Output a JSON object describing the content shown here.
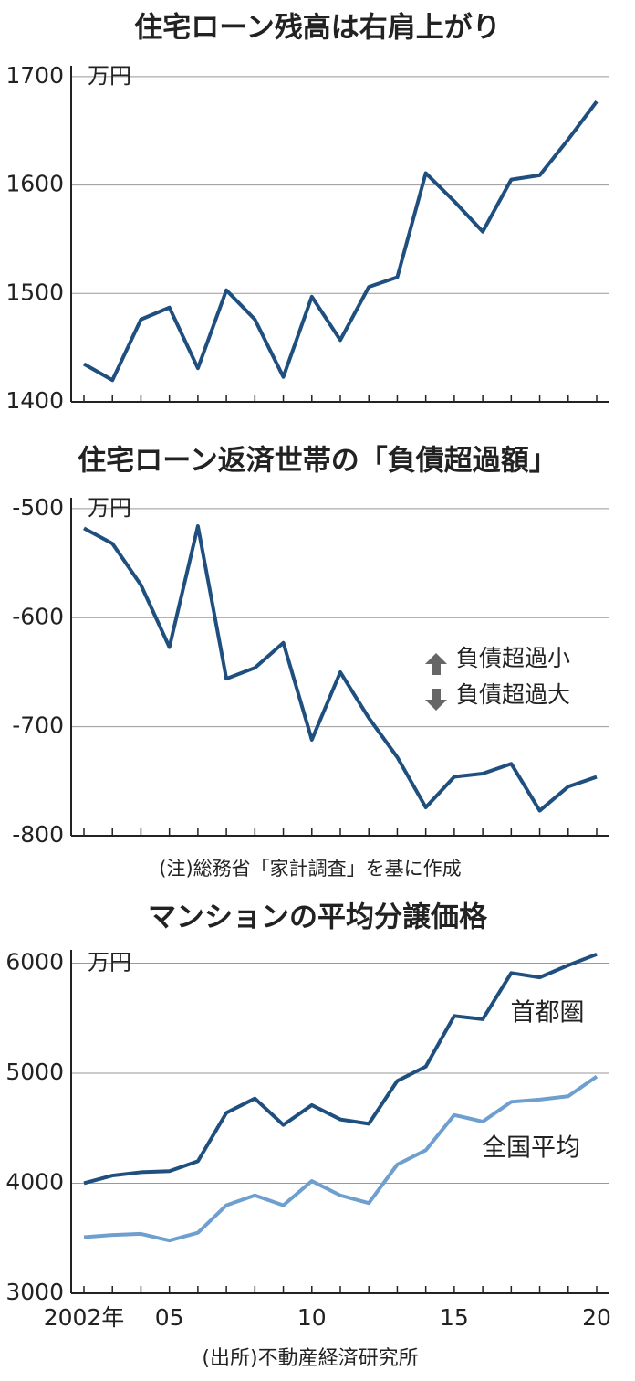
{
  "chart_data": [
    {
      "type": "line",
      "title": "住宅ローン残高は右肩上がり",
      "unit": "万円",
      "x": [
        2002,
        2003,
        2004,
        2005,
        2006,
        2007,
        2008,
        2009,
        2010,
        2011,
        2012,
        2013,
        2014,
        2015,
        2016,
        2017,
        2018,
        2019,
        2020
      ],
      "series": [
        {
          "color": "#1f4f7e",
          "values": [
            1435,
            1420,
            1476,
            1487,
            1431,
            1503,
            1476,
            1423,
            1497,
            1457,
            1506,
            1515,
            1611,
            1585,
            1557,
            1605,
            1609,
            1642,
            1677
          ]
        }
      ],
      "xlim": [
        2001.5,
        2020.5
      ],
      "ylim": [
        1400,
        1710
      ],
      "yticks": [
        1400,
        1500,
        1600,
        1700
      ],
      "grid": true
    },
    {
      "type": "line",
      "title": "住宅ローン返済世帯の「負債超過額」",
      "unit": "万円",
      "x": [
        2002,
        2003,
        2004,
        2005,
        2006,
        2007,
        2008,
        2009,
        2010,
        2011,
        2012,
        2013,
        2014,
        2015,
        2016,
        2017,
        2018,
        2019,
        2020
      ],
      "series": [
        {
          "color": "#1f4f7e",
          "values": [
            -518,
            -532,
            -570,
            -627,
            -516,
            -656,
            -646,
            -623,
            -712,
            -650,
            -692,
            -728,
            -774,
            -746,
            -743,
            -734,
            -777,
            -755,
            -746
          ]
        }
      ],
      "xlim": [
        2001.5,
        2020.5
      ],
      "ylim": [
        -800,
        -490
      ],
      "yticks": [
        -800,
        -700,
        -600,
        -500
      ],
      "grid": true,
      "annotations": [
        "負債超過小",
        "負債超過大"
      ],
      "note": "(注)総務省「家計調査」を基に作成"
    },
    {
      "type": "line",
      "title": "マンションの平均分譲価格",
      "unit": "万円",
      "x": [
        2002,
        2003,
        2004,
        2005,
        2006,
        2007,
        2008,
        2009,
        2010,
        2011,
        2012,
        2013,
        2014,
        2015,
        2016,
        2017,
        2018,
        2019,
        2020
      ],
      "series": [
        {
          "name": "首都圏",
          "color": "#1f4f7e",
          "values": [
            4000,
            4070,
            4100,
            4110,
            4200,
            4640,
            4770,
            4530,
            4710,
            4580,
            4540,
            4930,
            5060,
            5520,
            5490,
            5910,
            5870,
            5980,
            6080
          ]
        },
        {
          "name": "全国平均",
          "color": "#6e9fcf",
          "values": [
            3510,
            3530,
            3540,
            3480,
            3550,
            3800,
            3890,
            3800,
            4020,
            3890,
            3820,
            4170,
            4300,
            4620,
            4560,
            4740,
            4760,
            4790,
            4970
          ]
        }
      ],
      "xlim": [
        2001.5,
        2020.5
      ],
      "ylim": [
        3000,
        6120
      ],
      "yticks": [
        3000,
        4000,
        5000,
        6000
      ],
      "xticks": [
        {
          "value": 2002,
          "label": "2002年"
        },
        {
          "value": 2005,
          "label": "05"
        },
        {
          "value": 2010,
          "label": "10"
        },
        {
          "value": 2015,
          "label": "15"
        },
        {
          "value": 2020,
          "label": "20"
        }
      ],
      "grid": true,
      "source": "(出所)不動産経済研究所"
    }
  ]
}
